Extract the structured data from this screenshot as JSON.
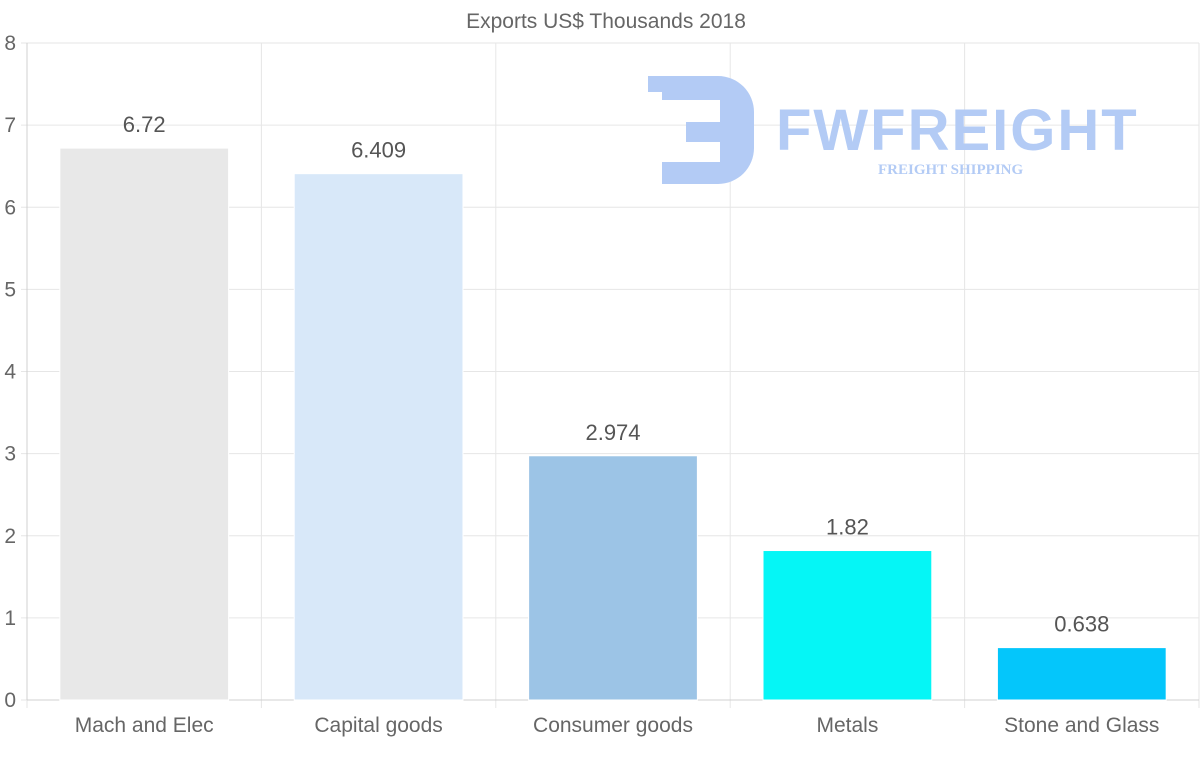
{
  "chart_data": {
    "type": "bar",
    "title": "Exports US$ Thousands 2018",
    "categories": [
      "Mach and Elec",
      "Capital goods",
      "Consumer goods",
      "Metals",
      "Stone and Glass"
    ],
    "values": [
      6.72,
      6.409,
      2.974,
      1.82,
      0.638
    ],
    "data_labels": [
      "6.72",
      "6.409",
      "2.974",
      "1.82",
      "0.638"
    ],
    "colors": [
      "#e8e8e8",
      "#d8e8f9",
      "#9cc4e6",
      "#05f6f6",
      "#04c6fb"
    ],
    "ylim": [
      0,
      8
    ],
    "yticks": [
      0,
      1,
      2,
      3,
      4,
      5,
      6,
      7,
      8
    ],
    "xlabel": "",
    "ylabel": "",
    "grid": true
  },
  "watermark": {
    "brand": "FWFREIGHT",
    "tagline": "FREIGHT SHIPPING",
    "color": "#b3cbf5"
  }
}
